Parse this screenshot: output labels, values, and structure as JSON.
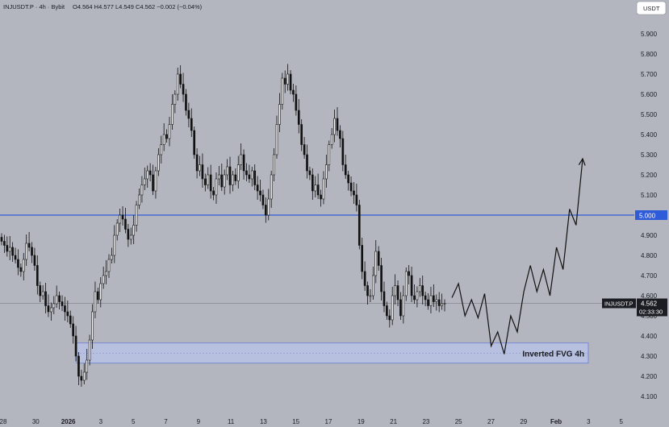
{
  "header": {
    "symbol_line": "INJUSDT.P · 4h · Bybit",
    "ohlc_line": "O4.564 H4.577 L4.549 C4.562 −0.002 (−0.04%)",
    "currency_label": "USDT"
  },
  "chart_data": {
    "type": "candlestick",
    "title": "INJUSDT.P · 4h · Bybit",
    "ylim": [
      4.02,
      5.98
    ],
    "y_ticks": [
      "5.900",
      "5.800",
      "5.700",
      "5.600",
      "5.500",
      "5.400",
      "5.300",
      "5.200",
      "5.100",
      "5.000",
      "4.900",
      "4.800",
      "4.700",
      "4.600",
      "4.500",
      "4.400",
      "4.300",
      "4.200",
      "4.100"
    ],
    "x_ticks": [
      "28",
      "30",
      "2026",
      "3",
      "5",
      "7",
      "9",
      "11",
      "13",
      "15",
      "17",
      "19",
      "21",
      "23",
      "25",
      "27",
      "29",
      "Feb",
      "3",
      "5"
    ],
    "current_price": 4.562,
    "price_tag": {
      "symbol": "INJUSDT.P",
      "value": "4.562",
      "countdown": "02:33:30"
    },
    "horizontal_level": {
      "value": 5.0,
      "label": "5.000",
      "color": "#2f5bd9"
    },
    "zone": {
      "label": "Inverted FVG 4h",
      "y_top": 4.365,
      "y_bottom": 4.265,
      "color": "#b9c2e6"
    },
    "projection_path": [
      4.59,
      4.66,
      4.5,
      4.58,
      4.49,
      4.61,
      4.35,
      4.42,
      4.31,
      4.5,
      4.42,
      4.62,
      4.75,
      4.62,
      4.73,
      4.6,
      4.84,
      4.73,
      5.03,
      4.95,
      5.28
    ],
    "projection_color": "#111111",
    "candle_colors": {
      "up": "#ffffff",
      "down": "#111111"
    },
    "price_series": [
      4.87,
      4.85,
      4.82,
      4.84,
      4.8,
      4.78,
      4.74,
      4.72,
      4.78,
      4.86,
      4.84,
      4.8,
      4.75,
      4.65,
      4.6,
      4.62,
      4.55,
      4.52,
      4.54,
      4.56,
      4.6,
      4.57,
      4.55,
      4.52,
      4.5,
      4.46,
      4.4,
      4.3,
      4.2,
      4.18,
      4.22,
      4.28,
      4.38,
      4.52,
      4.62,
      4.58,
      4.66,
      4.7,
      4.72,
      4.78,
      4.8,
      4.9,
      4.96,
      5.0,
      4.98,
      4.93,
      4.88,
      4.9,
      4.95,
      5.05,
      5.1,
      5.15,
      5.18,
      5.22,
      5.2,
      5.12,
      5.22,
      5.3,
      5.35,
      5.4,
      5.38,
      5.45,
      5.55,
      5.6,
      5.7,
      5.65,
      5.6,
      5.52,
      5.48,
      5.42,
      5.3,
      5.22,
      5.25,
      5.18,
      5.15,
      5.2,
      5.12,
      5.1,
      5.18,
      5.2,
      5.14,
      5.2,
      5.24,
      5.15,
      5.2,
      5.17,
      5.25,
      5.3,
      5.22,
      5.2,
      5.18,
      5.22,
      5.15,
      5.12,
      5.1,
      5.05,
      5.0,
      5.08,
      5.2,
      5.3,
      5.45,
      5.55,
      5.68,
      5.65,
      5.7,
      5.62,
      5.6,
      5.52,
      5.45,
      5.35,
      5.3,
      5.22,
      5.2,
      5.12,
      5.15,
      5.1,
      5.08,
      5.18,
      5.25,
      5.35,
      5.4,
      5.48,
      5.42,
      5.38,
      5.25,
      5.2,
      5.16,
      5.12,
      5.1,
      5.05,
      4.85,
      4.72,
      4.65,
      4.6,
      4.6,
      4.7,
      4.82,
      4.75,
      4.62,
      4.55,
      4.5,
      4.48,
      4.6,
      4.65,
      4.58,
      4.5,
      4.6,
      4.72,
      4.7,
      4.6,
      4.58,
      4.62,
      4.65,
      4.6,
      4.58,
      4.55,
      4.6,
      4.57,
      4.58,
      4.55,
      4.56,
      4.562
    ]
  }
}
